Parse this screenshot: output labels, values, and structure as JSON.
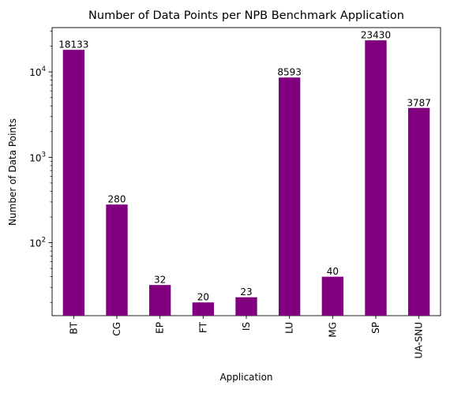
{
  "chart_data": {
    "type": "bar",
    "title": "Number of Data Points per NPB Benchmark Application",
    "xlabel": "Application",
    "ylabel": "Number of Data Points",
    "yscale": "log",
    "ylim": [
      14,
      33000
    ],
    "y_ticks": [
      {
        "value": 100,
        "base": "10",
        "exp": "2"
      },
      {
        "value": 1000,
        "base": "10",
        "exp": "3"
      },
      {
        "value": 10000,
        "base": "10",
        "exp": "4"
      }
    ],
    "categories": [
      "BT",
      "CG",
      "EP",
      "FT",
      "IS",
      "LU",
      "MG",
      "SP",
      "UA-SNU"
    ],
    "values": [
      18133,
      280,
      32,
      20,
      23,
      8593,
      40,
      23430,
      3787
    ],
    "value_labels": [
      "18133",
      "280",
      "32",
      "20",
      "23",
      "8593",
      "40",
      "23430",
      "3787"
    ],
    "bar_color": "#800080",
    "legend": "none",
    "grid": false
  }
}
